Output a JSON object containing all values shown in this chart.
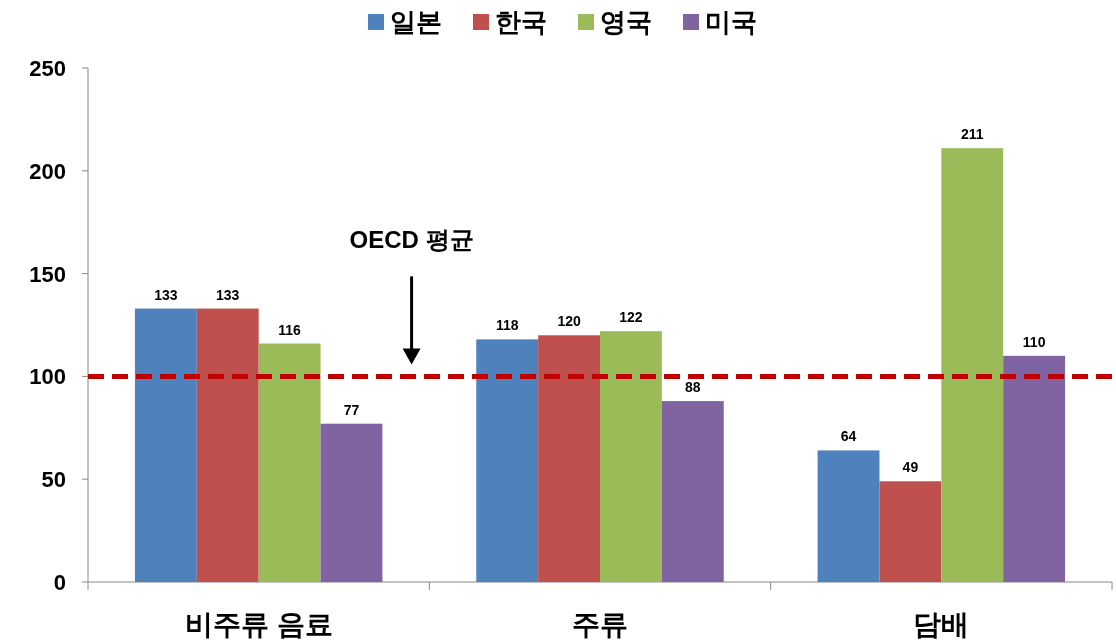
{
  "chart_data": {
    "type": "bar",
    "categories": [
      "비주류 음료",
      "주류",
      "담배"
    ],
    "series": [
      {
        "name": "일본",
        "color": "#4f81bd",
        "values": [
          133,
          118,
          64
        ]
      },
      {
        "name": "한국",
        "color": "#c0504d",
        "values": [
          133,
          120,
          49
        ]
      },
      {
        "name": "영국",
        "color": "#9bbb59",
        "values": [
          116,
          122,
          211
        ]
      },
      {
        "name": "미국",
        "color": "#8064a2",
        "values": [
          77,
          88,
          110
        ]
      }
    ],
    "ylim": [
      0,
      250
    ],
    "yticks": [
      0,
      50,
      100,
      150,
      200,
      250
    ],
    "ref_lines": [
      {
        "axis": "y",
        "value": 100,
        "color": "#c00000",
        "line_style": "dashed"
      }
    ],
    "annotations": [
      "OECD 평균"
    ],
    "data_labels": true,
    "legend": "top"
  }
}
